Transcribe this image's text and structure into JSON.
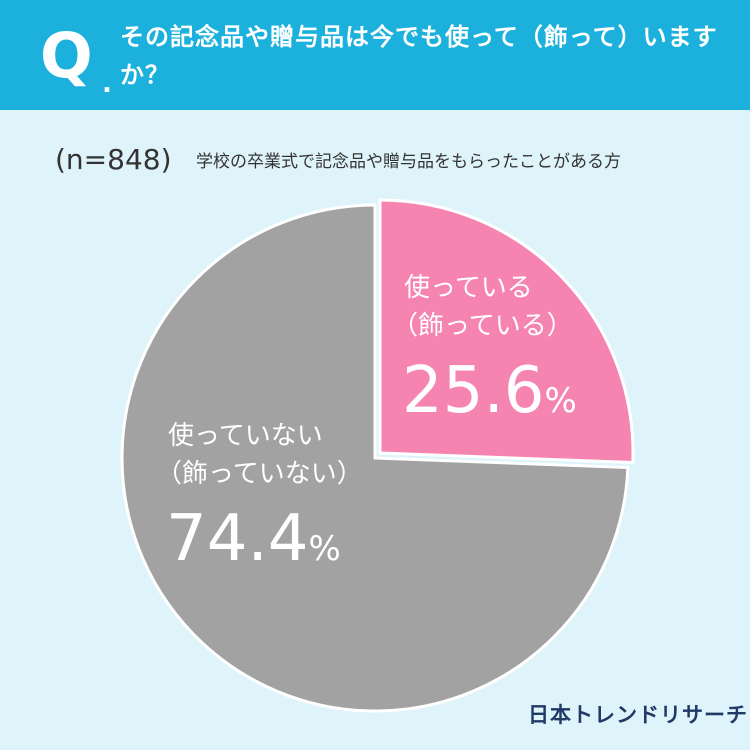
{
  "question": {
    "mark": "Q",
    "dot": ".",
    "text": "その記念品や贈与品は今でも使って（飾って）いますか？"
  },
  "sample_size": "(n=848)",
  "subtitle": "学校の卒業式で記念品や贈与品をもらったことがある方",
  "slices": {
    "used": {
      "label_line1": "使っている",
      "label_line2": "（飾っている）",
      "value_text": "25.6",
      "pct_sign": "%"
    },
    "not_used": {
      "label_line1": "使っていない",
      "label_line2": "（飾っていない）",
      "value_text": "74.4",
      "pct_sign": "%"
    }
  },
  "logo": "日本トレンドリサーチ",
  "colors": {
    "header": "#1cb1dd",
    "background": "#dff3fa",
    "used": "#f585b0",
    "not_used": "#a2a2a2",
    "logo": "#1f3a66"
  },
  "chart_data": {
    "type": "pie",
    "title": "",
    "categories": [
      "使っている（飾っている）",
      "使っていない（飾っていない）"
    ],
    "values": [
      25.6,
      74.4
    ],
    "unit": "%",
    "n": 848,
    "start": "12 o'clock",
    "direction": "clockwise"
  }
}
